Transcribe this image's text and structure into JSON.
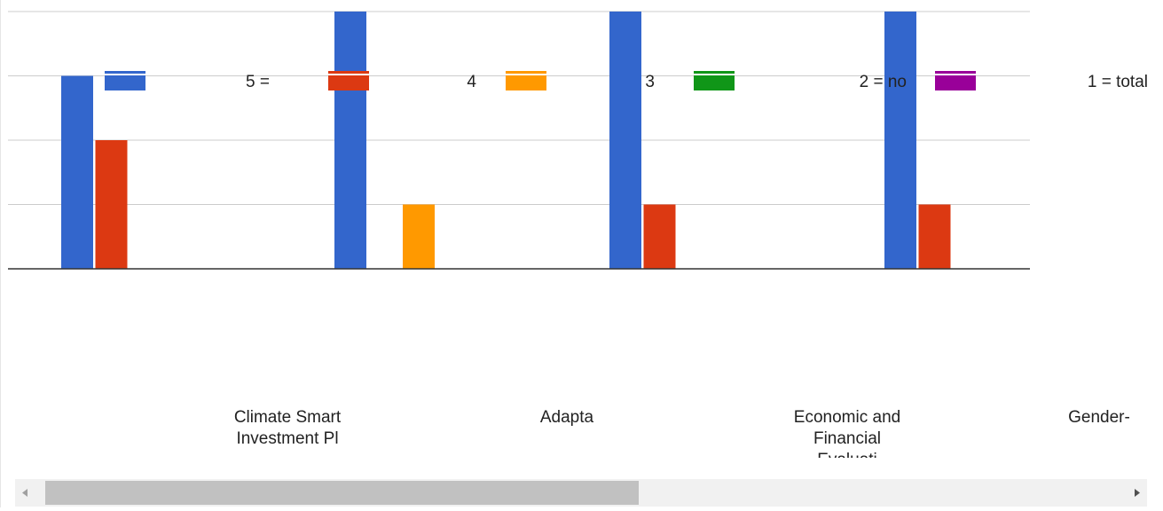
{
  "chart_data": {
    "type": "bar",
    "categories": [
      "",
      "Climate Smart Investment Pl",
      "Adapta",
      "Economic and Financial Evaluati",
      "Gender-"
    ],
    "series": [
      {
        "name": "5 =",
        "color": "#3366cc",
        "values": [
          3,
          4,
          4,
          4,
          null
        ]
      },
      {
        "name": "4",
        "color": "#dc3912",
        "values": [
          2,
          null,
          1,
          1,
          null
        ]
      },
      {
        "name": "3",
        "color": "#ff9900",
        "values": [
          null,
          1,
          null,
          null,
          null
        ]
      },
      {
        "name": "2 = no",
        "color": "#109618",
        "values": [
          null,
          null,
          null,
          null,
          null
        ]
      },
      {
        "name": "1 = total",
        "color": "#990099",
        "values": [
          null,
          null,
          null,
          null,
          null
        ]
      }
    ],
    "legend_position": "top",
    "grid": true,
    "ylim": [
      0,
      4
    ]
  }
}
